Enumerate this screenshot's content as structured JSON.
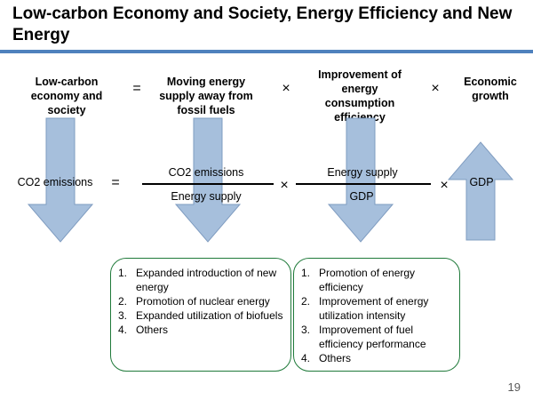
{
  "title": "Low-carbon Economy and Society, Energy Efficiency and New Energy",
  "header": {
    "col1": "Low-carbon economy and society",
    "eq": "=",
    "col2": "Moving energy supply away from fossil fuels",
    "times1": "×",
    "col3": "Improvement of energy consumption efficiency",
    "times2": "×",
    "col4": "Economic growth"
  },
  "equation": {
    "lhs": "CO2 emissions",
    "eq": "=",
    "frac1_num": "CO2 emissions",
    "frac1_den": "Energy supply",
    "times1": "×",
    "frac2_num": "Energy supply",
    "frac2_den": "GDP",
    "times2": "×",
    "rhs": "GDP"
  },
  "arrows": {
    "col1": "down",
    "col2": "down",
    "col3": "down",
    "col4": "up",
    "fill_color": "#a6bfdc",
    "stroke_color": "#7f9cc0"
  },
  "box_left": {
    "items": [
      {
        "num": "1.",
        "text": "Expanded introduction of new energy"
      },
      {
        "num": "2.",
        "text": "Promotion of nuclear energy"
      },
      {
        "num": "3.",
        "text": "Expanded utilization of biofuels"
      },
      {
        "num": "4.",
        "text": "Others"
      }
    ]
  },
  "box_right": {
    "items": [
      {
        "num": "1.",
        "text": "Promotion of energy efficiency"
      },
      {
        "num": "2.",
        "text": "Improvement of energy utilization intensity"
      },
      {
        "num": "3.",
        "text": "Improvement of fuel efficiency performance"
      },
      {
        "num": "4.",
        "text": "Others"
      }
    ]
  },
  "colors": {
    "title_rule": "#4f81bd",
    "box_border": "#1f7a3a"
  },
  "page_number": "19"
}
